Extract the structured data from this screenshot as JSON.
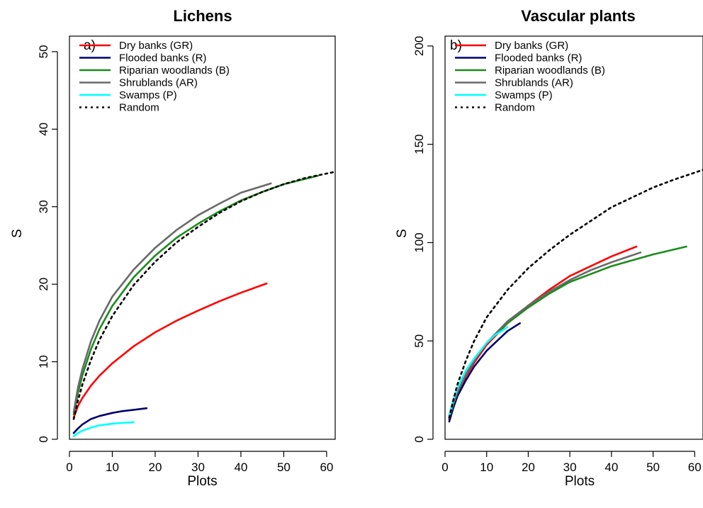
{
  "chart_data": [
    {
      "type": "line",
      "title": "Lichens",
      "panel_label": "a)",
      "xlabel": "Plots",
      "ylabel": "S",
      "xlim": [
        0,
        62
      ],
      "ylim": [
        0,
        52
      ],
      "xticks": [
        0,
        10,
        20,
        30,
        40,
        50,
        60
      ],
      "yticks": [
        0,
        10,
        20,
        30,
        40,
        50
      ],
      "legend_position": "top-left",
      "series": [
        {
          "name": "Dry banks (GR)",
          "color": "#ff0000",
          "dash": "solid",
          "x": [
            1,
            2,
            3,
            5,
            7,
            10,
            15,
            20,
            25,
            30,
            35,
            40,
            46
          ],
          "y": [
            2.8,
            4.3,
            5.3,
            6.9,
            8.2,
            9.8,
            12.0,
            13.8,
            15.3,
            16.6,
            17.8,
            18.9,
            20.1
          ]
        },
        {
          "name": "Flooded banks (R)",
          "color": "#00006e",
          "dash": "solid",
          "x": [
            1,
            2,
            3,
            5,
            7,
            10,
            12,
            15,
            18
          ],
          "y": [
            0.8,
            1.4,
            1.9,
            2.6,
            3.0,
            3.4,
            3.6,
            3.8,
            4.0
          ]
        },
        {
          "name": "Riparian woodlands (B)",
          "color": "#1a8c1a",
          "dash": "solid",
          "x": [
            1,
            2,
            3,
            5,
            7,
            10,
            15,
            20,
            25,
            30,
            35,
            40,
            45,
            50,
            58
          ],
          "y": [
            3.2,
            6.0,
            8.2,
            11.6,
            14.2,
            17.2,
            20.9,
            23.7,
            26.0,
            27.8,
            29.4,
            30.8,
            31.9,
            32.9,
            34.0
          ]
        },
        {
          "name": "Shrublands (AR)",
          "color": "#696969",
          "dash": "solid",
          "x": [
            1,
            2,
            3,
            5,
            7,
            10,
            15,
            20,
            25,
            30,
            35,
            40,
            47
          ],
          "y": [
            3.5,
            6.7,
            9.0,
            12.6,
            15.3,
            18.4,
            21.9,
            24.7,
            27.0,
            28.9,
            30.4,
            31.8,
            33.0
          ]
        },
        {
          "name": "Swamps (P)",
          "color": "#00ffff",
          "dash": "solid",
          "x": [
            1,
            2,
            3,
            5,
            7,
            10,
            12,
            15
          ],
          "y": [
            0.4,
            0.8,
            1.1,
            1.5,
            1.8,
            2.0,
            2.1,
            2.2
          ]
        },
        {
          "name": "Random",
          "color": "#000000",
          "dash": "dotted",
          "x": [
            1,
            2,
            3,
            5,
            7,
            10,
            15,
            20,
            25,
            30,
            35,
            40,
            45,
            50,
            55,
            62
          ],
          "y": [
            2.6,
            5.0,
            7.0,
            10.2,
            12.8,
            15.9,
            19.9,
            22.9,
            25.4,
            27.4,
            29.2,
            30.7,
            31.9,
            32.9,
            33.7,
            34.5
          ]
        }
      ]
    },
    {
      "type": "line",
      "title": "Vascular plants",
      "panel_label": "b)",
      "xlabel": "Plots",
      "ylabel": "S",
      "xlim": [
        0,
        62
      ],
      "ylim": [
        0,
        205
      ],
      "xticks": [
        0,
        10,
        20,
        30,
        40,
        50,
        60
      ],
      "yticks": [
        0,
        50,
        100,
        150,
        200
      ],
      "legend_position": "top-left",
      "series": [
        {
          "name": "Dry banks (GR)",
          "color": "#ff0000",
          "dash": "solid",
          "x": [
            1,
            2,
            3,
            5,
            7,
            10,
            15,
            20,
            25,
            30,
            35,
            40,
            46
          ],
          "y": [
            10,
            17,
            23,
            32,
            39,
            48,
            59,
            68,
            76,
            83,
            88,
            93,
            98
          ]
        },
        {
          "name": "Flooded banks (R)",
          "color": "#00006e",
          "dash": "solid",
          "x": [
            1,
            2,
            3,
            5,
            7,
            10,
            13,
            15,
            18
          ],
          "y": [
            9,
            16,
            22,
            30,
            37,
            45,
            51,
            55,
            59
          ]
        },
        {
          "name": "Riparian woodlands (B)",
          "color": "#1a8c1a",
          "dash": "solid",
          "x": [
            1,
            2,
            3,
            5,
            7,
            10,
            15,
            20,
            25,
            30,
            35,
            40,
            45,
            50,
            58
          ],
          "y": [
            11,
            18,
            24,
            33,
            40,
            49,
            59,
            67,
            74,
            80,
            84,
            88,
            91,
            94,
            98
          ]
        },
        {
          "name": "Shrublands (AR)",
          "color": "#696969",
          "dash": "solid",
          "x": [
            1,
            2,
            3,
            5,
            7,
            10,
            15,
            20,
            25,
            30,
            35,
            40,
            47
          ],
          "y": [
            11,
            18,
            24,
            33,
            40,
            49,
            60,
            68,
            75,
            81,
            86,
            90,
            95
          ]
        },
        {
          "name": "Swamps (P)",
          "color": "#00ffff",
          "dash": "solid",
          "x": [
            1,
            2,
            3,
            5,
            7,
            10,
            12,
            15
          ],
          "y": [
            12,
            20,
            26,
            35,
            41,
            49,
            53,
            57
          ]
        },
        {
          "name": "Random",
          "color": "#000000",
          "dash": "dotted",
          "x": [
            1,
            2,
            3,
            5,
            7,
            10,
            15,
            20,
            25,
            30,
            35,
            40,
            45,
            50,
            55,
            62
          ],
          "y": [
            11,
            20,
            28,
            40,
            50,
            62,
            76,
            87,
            96,
            104,
            111,
            118,
            123,
            128,
            132,
            137
          ]
        }
      ]
    }
  ]
}
